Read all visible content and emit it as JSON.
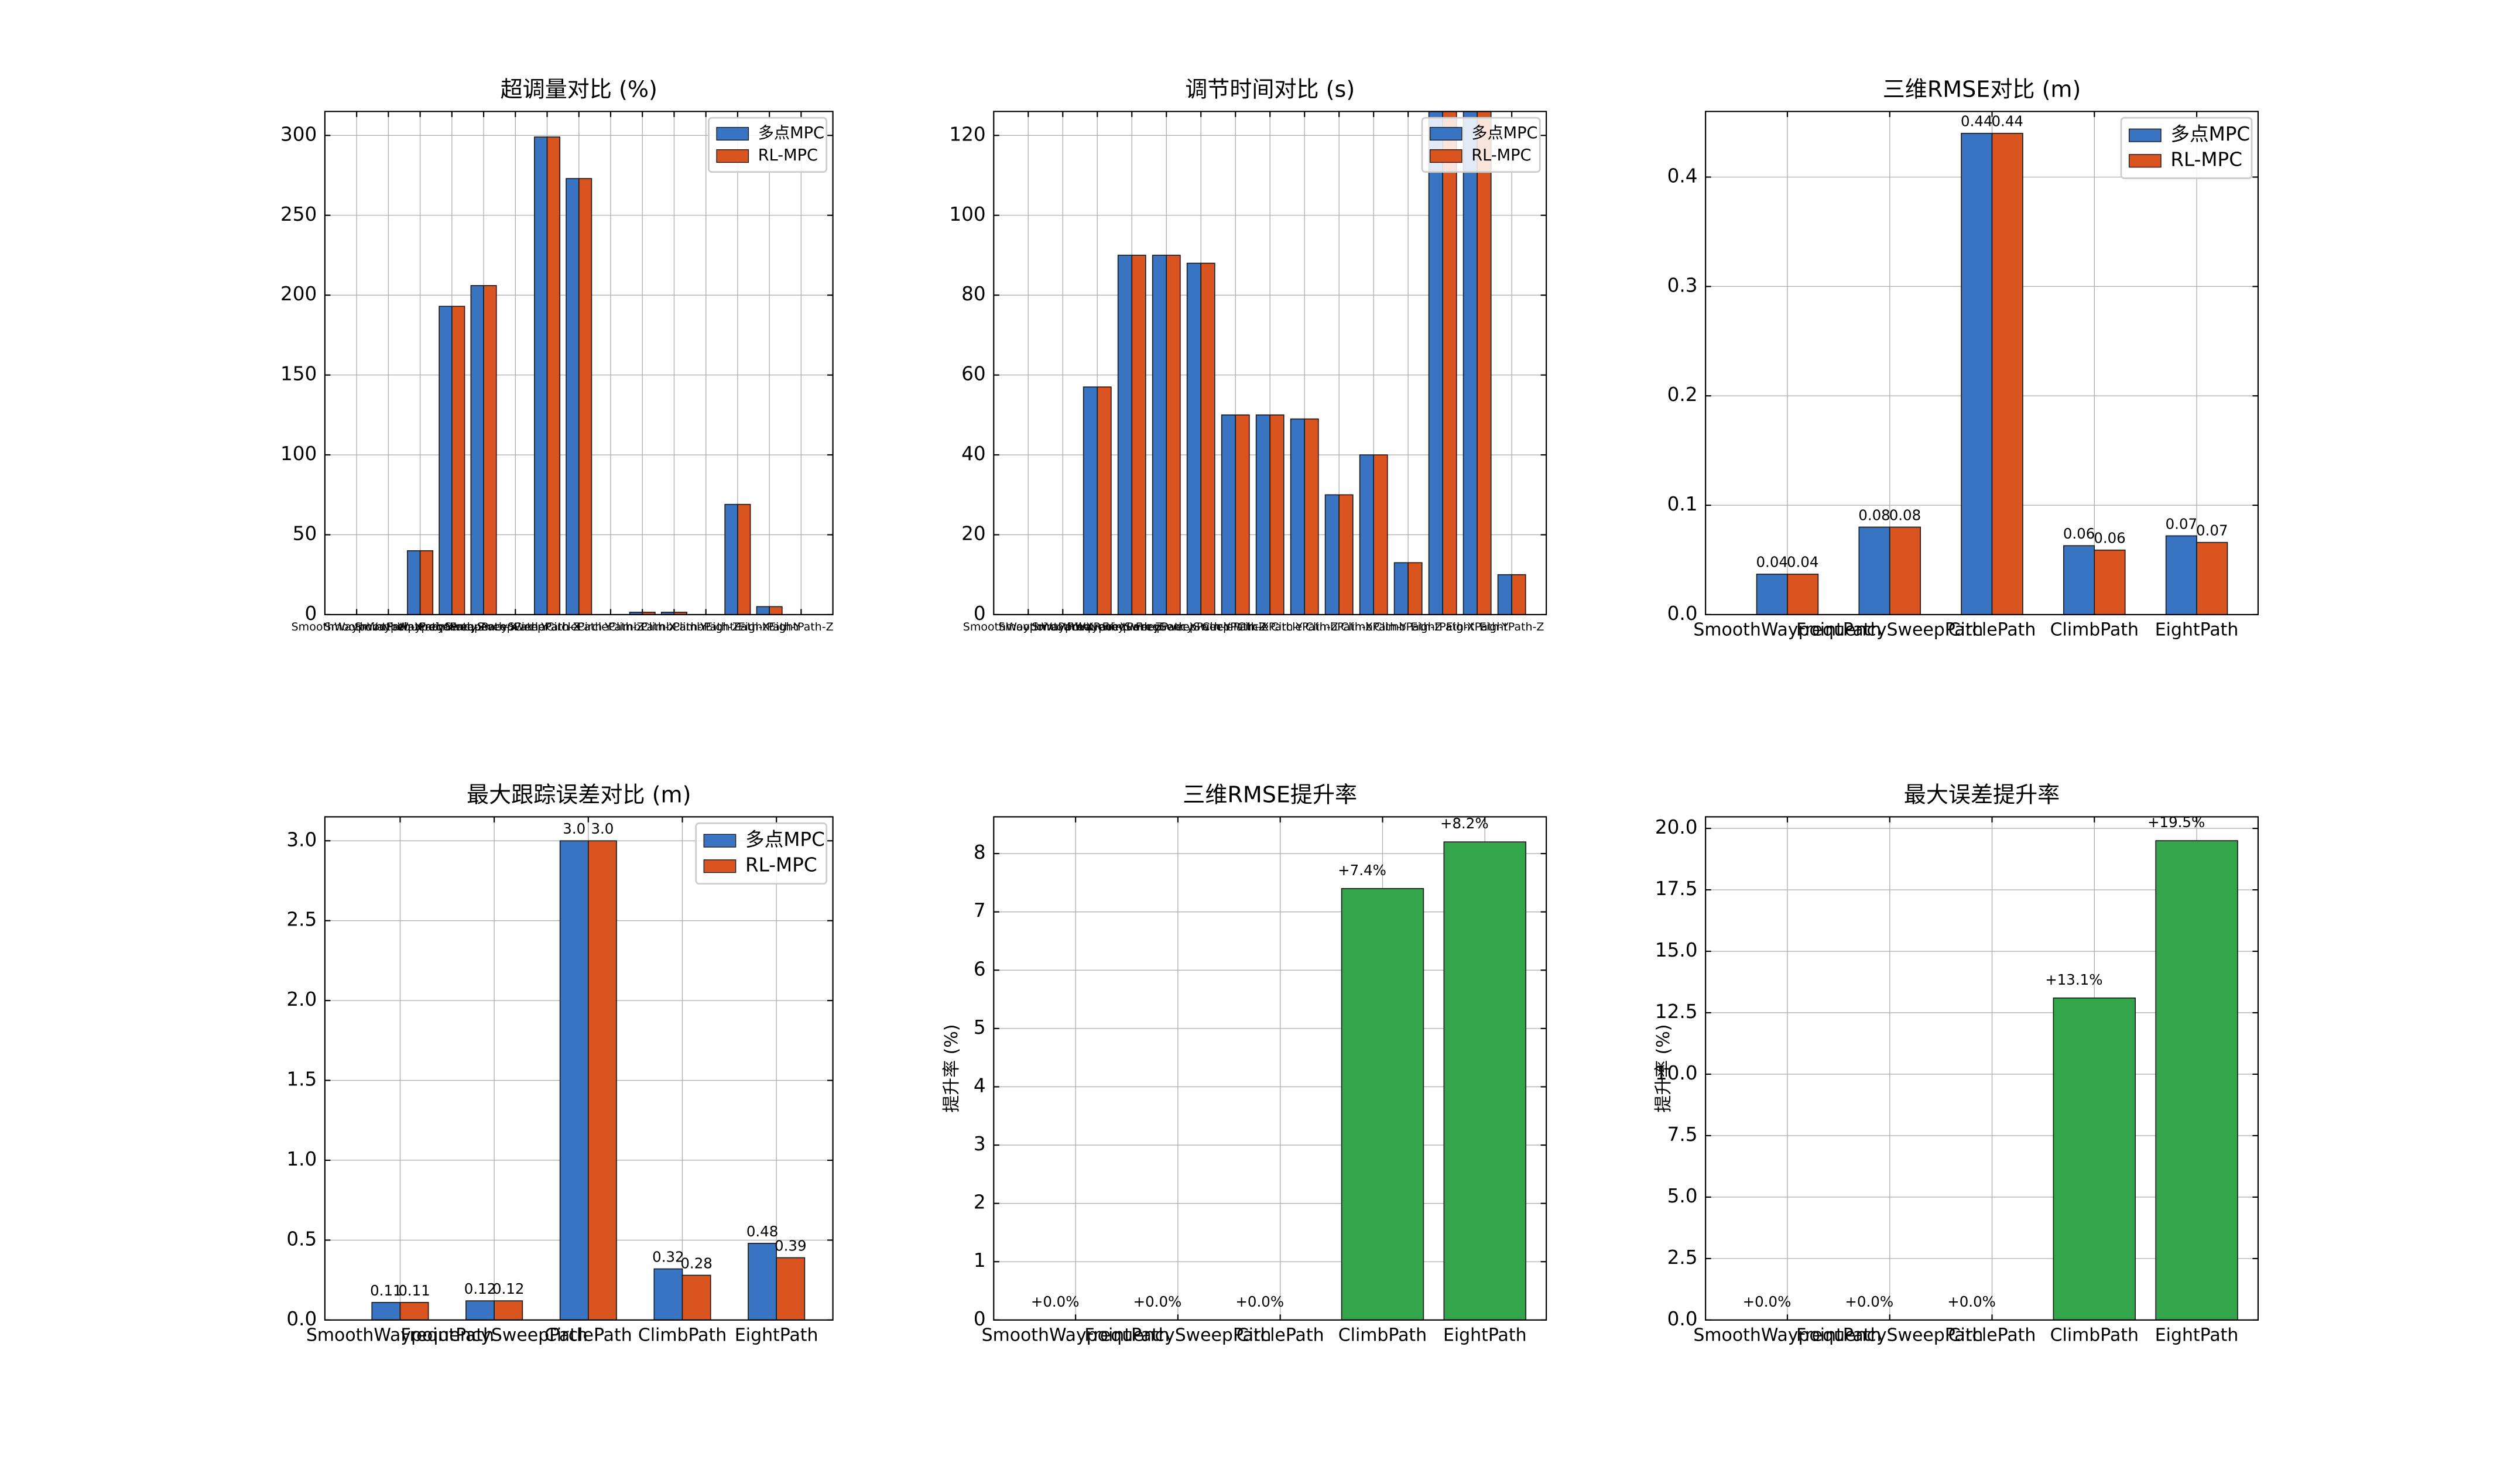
{
  "chart_data": [
    {
      "type": "bar",
      "title": "超调量对比 (%)",
      "categories": [
        "SmoothWaypointPath-X",
        "SmoothWaypointPath-Y",
        "SmoothWaypointPath-Z",
        "FrequencySweepPath-X",
        "FrequencySweepPath-Y",
        "FrequencySweepPath-Z",
        "CirclePath-X",
        "CirclePath-Y",
        "CirclePath-Z",
        "ClimbPath-X",
        "ClimbPath-Y",
        "ClimbPath-Z",
        "EightPath-X",
        "EightPath-Y",
        "EightPath-Z"
      ],
      "series": [
        {
          "name": "多点MPC",
          "color": "#3874c2",
          "values": [
            0,
            0,
            40,
            193,
            206,
            0,
            299,
            273,
            0,
            1.5,
            1.5,
            0,
            69,
            5,
            0
          ]
        },
        {
          "name": "RL-MPC",
          "color": "#d9541e",
          "values": [
            0,
            0,
            40,
            193,
            206,
            0,
            299,
            273,
            0,
            1.5,
            1.5,
            0,
            69,
            5,
            0
          ]
        }
      ],
      "ylim": [
        0,
        315
      ],
      "yticks": [
        0,
        50,
        100,
        150,
        200,
        250,
        300
      ],
      "grid": true,
      "legend": "upper right"
    },
    {
      "type": "bar",
      "title": "调节时间对比 (s)",
      "categories": [
        "SmoothWaypointPath-X",
        "SmoothWaypointPath-Y",
        "SmoothWaypointPath-Z",
        "FrequencySweepPath-X",
        "FrequencySweepPath-Y",
        "FrequencySweepPath-Z",
        "CirclePath-X",
        "CirclePath-Y",
        "CirclePath-Z",
        "ClimbPath-X",
        "ClimbPath-Y",
        "ClimbPath-Z",
        "EightPath-X",
        "EightPath-Y",
        "EightPath-Z"
      ],
      "series": [
        {
          "name": "多点MPC",
          "color": "#3874c2",
          "values": [
            0,
            0,
            57,
            90,
            90,
            88,
            50,
            50,
            49,
            30,
            40,
            13,
            130,
            130,
            10
          ]
        },
        {
          "name": "RL-MPC",
          "color": "#d9541e",
          "values": [
            0,
            0,
            57,
            90,
            90,
            88,
            50,
            50,
            49,
            30,
            40,
            13,
            130,
            130,
            10
          ]
        }
      ],
      "ylim": [
        0,
        126
      ],
      "yticks": [
        0,
        20,
        40,
        60,
        80,
        100,
        120
      ],
      "grid": true,
      "legend": "upper right"
    },
    {
      "type": "bar",
      "title": "三维RMSE对比 (m)",
      "categories": [
        "SmoothWaypointPath",
        "FrequencySweepPath",
        "CirclePath",
        "ClimbPath",
        "EightPath"
      ],
      "series": [
        {
          "name": "多点MPC",
          "color": "#3874c2",
          "values": [
            0.037,
            0.08,
            0.44,
            0.063,
            0.072
          ],
          "value_labels": [
            "0.04",
            "0.08",
            "0.44",
            "0.06",
            "0.07"
          ]
        },
        {
          "name": "RL-MPC",
          "color": "#d9541e",
          "values": [
            0.037,
            0.08,
            0.44,
            0.059,
            0.066
          ],
          "value_labels": [
            "0.04",
            "0.08",
            "0.44",
            "0.06",
            "0.07"
          ]
        }
      ],
      "ylim": [
        0,
        0.46
      ],
      "yticks": [
        {
          "value": 0,
          "label": "0.0"
        },
        0.1,
        0.2,
        0.3,
        0.4
      ],
      "grid": true,
      "legend": "upper right"
    },
    {
      "type": "bar",
      "title": "最大跟踪误差对比 (m)",
      "categories": [
        "SmoothWaypointPath",
        "FrequencySweepPath",
        "CirclePath",
        "ClimbPath",
        "EightPath"
      ],
      "series": [
        {
          "name": "多点MPC",
          "color": "#3874c2",
          "values": [
            0.11,
            0.12,
            3.0,
            0.32,
            0.48
          ],
          "value_labels": [
            "0.11",
            "0.12",
            "3.0",
            "0.32",
            "0.48"
          ]
        },
        {
          "name": "RL-MPC",
          "color": "#d9541e",
          "values": [
            0.11,
            0.12,
            3.0,
            0.28,
            0.39
          ],
          "value_labels": [
            "0.11",
            "0.12",
            "3.0",
            "0.28",
            "0.39"
          ]
        }
      ],
      "ylim": [
        0,
        3.15
      ],
      "yticks": [
        {
          "value": 0,
          "label": "0.0"
        },
        0.5,
        {
          "value": 1,
          "label": "1.0"
        },
        1.5,
        {
          "value": 2,
          "label": "2.0"
        },
        2.5,
        {
          "value": 3,
          "label": "3.0"
        }
      ],
      "grid": true,
      "legend": "upper right"
    },
    {
      "type": "bar",
      "title": "三维RMSE提升率",
      "ylabel": "提升率 (%)",
      "categories": [
        "SmoothWaypointPath",
        "FrequencySweepPath",
        "CirclePath",
        "ClimbPath",
        "EightPath"
      ],
      "values": [
        0,
        0,
        0,
        7.4,
        8.2
      ],
      "value_labels": [
        "+0.0%",
        "+0.0%",
        "+0.0%",
        "+7.4%",
        "+8.2%"
      ],
      "color": "#33a54a",
      "ylim": [
        0,
        8.63
      ],
      "yticks": [
        0,
        1,
        2,
        3,
        4,
        5,
        6,
        7,
        8
      ],
      "grid": true
    },
    {
      "type": "bar",
      "title": "最大误差提升率",
      "ylabel": "提升率 (%)",
      "categories": [
        "SmoothWaypointPath",
        "FrequencySweepPath",
        "CirclePath",
        "ClimbPath",
        "EightPath"
      ],
      "values": [
        0,
        0,
        0,
        13.1,
        19.5
      ],
      "value_labels": [
        "+0.0%",
        "+0.0%",
        "+0.0%",
        "+13.1%",
        "+19.5%"
      ],
      "color": "#33a54a",
      "ylim": [
        0,
        20.47
      ],
      "yticks": [
        {
          "value": 0,
          "label": "0.0"
        },
        2.5,
        {
          "value": 5,
          "label": "5.0"
        },
        7.5,
        {
          "value": 10,
          "label": "10.0"
        },
        12.5,
        {
          "value": 15,
          "label": "15.0"
        },
        17.5,
        {
          "value": 20,
          "label": "20.0"
        }
      ],
      "grid": true
    }
  ]
}
